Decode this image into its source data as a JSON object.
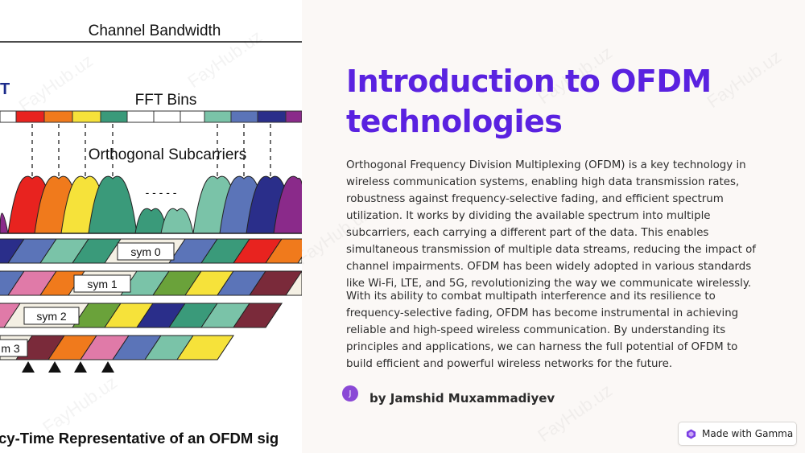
{
  "slide": {
    "title": "Introduction to OFDM technologies",
    "paragraphs": [
      "Orthogonal Frequency Division Multiplexing (OFDM) is a key technology in wireless communication systems, enabling high data transmission rates, robustness against frequency-selective fading, and efficient spectrum utilization. It works by dividing the available spectrum into multiple subcarriers, each carrying a different part of the data. This enables simultaneous transmission of multiple data streams, reducing the impact of channel impairments. OFDM has been widely adopted in various standards like Wi-Fi, LTE, and 5G, revolutionizing the way we communicate wirelessly.",
      "With its ability to combat multipath interference and its resilience to frequency-selective fading, OFDM has become instrumental in achieving reliable and high-speed wireless communication. By understanding its principles and applications, we can harness the full potential of OFDM to build efficient and powerful wireless networks for the future."
    ],
    "author": {
      "initial": "J",
      "name": "by Jamshid Muxammadiyev"
    }
  },
  "badge": {
    "label": "Made with Gamma"
  },
  "diagram": {
    "channel_bandwidth": "Channel Bandwidth",
    "fft_bins": "FFT Bins",
    "orthogonal_subcarriers": "Orthogonal Subcarriers",
    "left_letter": "T",
    "dots": "- - - - -",
    "symbols": [
      "sym 0",
      "sym 1",
      "sym 2",
      "m 3"
    ],
    "caption": "cy-Time Representative of an OFDM sig",
    "watermark": "FayHub.uz"
  },
  "colors": {
    "title": "#5a22e0",
    "avatar": "#8a49d6",
    "gamma_icon": "#7b3fe4"
  }
}
